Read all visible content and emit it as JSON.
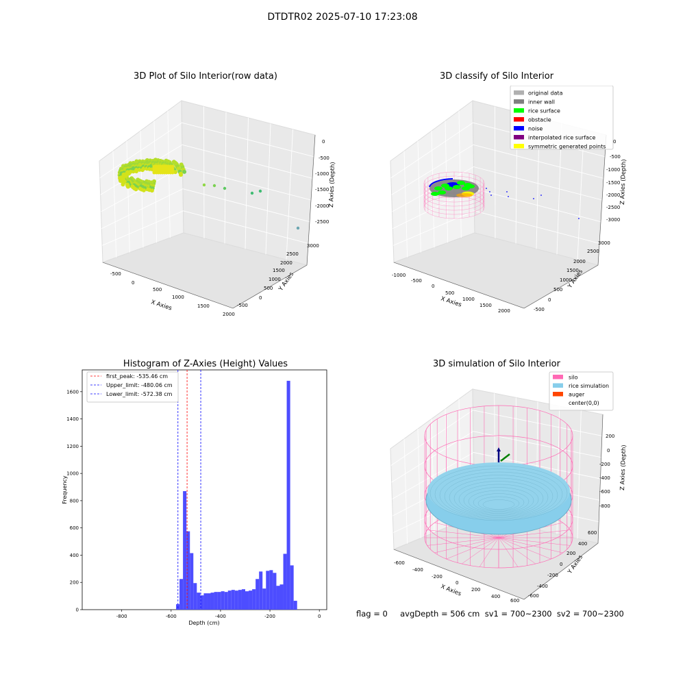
{
  "main_title": "DTDTR02 2025-07-10 17:23:08",
  "footer_text": "flag = 0     avgDepth = 506 cm  sv1 = 700~2300  sv2 = 700~2300",
  "chart_data": [
    {
      "type": "scatter",
      "projection": "3d",
      "title": "3D Plot of Silo Interior(row data)",
      "xlabel": "X Axies",
      "ylabel": "Y Axies",
      "zlabel": "Z Axies (Depth)",
      "xticks": [
        "-500",
        "0",
        "500",
        "1000",
        "1500",
        "2000"
      ],
      "yticks": [
        "-500",
        "0",
        "500",
        "1000",
        "1500",
        "2000",
        "2500",
        "3000"
      ],
      "zticks": [
        "0",
        "-500",
        "-1000",
        "-1500",
        "-2000",
        "-2500"
      ],
      "grid": true,
      "color_scheme": "viridis-like gradient by depth (yellow-green to teal)"
    },
    {
      "type": "scatter",
      "projection": "3d",
      "title": "3D classify of Silo Interior",
      "xlabel": "X Axies",
      "ylabel": "Y Axies",
      "zlabel": "Z Axies (Depth)",
      "xticks": [
        "-1000",
        "-500",
        "0",
        "500",
        "1000",
        "1500",
        "2000"
      ],
      "yticks": [
        "-500",
        "0",
        "500",
        "1000",
        "1500",
        "2000",
        "2500",
        "3000"
      ],
      "zticks": [
        "0",
        "-500",
        "-1000",
        "-1500",
        "-2000",
        "-2500",
        "-3000"
      ],
      "grid": true,
      "legend_position": "top-right",
      "legend": [
        {
          "label": "original data",
          "color": "#b0b0b0"
        },
        {
          "label": "inner wall",
          "color": "#808080"
        },
        {
          "label": "rice surface",
          "color": "#00ff00"
        },
        {
          "label": "obstacle",
          "color": "#ff0000"
        },
        {
          "label": "noise",
          "color": "#0000ff"
        },
        {
          "label": "interpolated rice surface",
          "color": "#800080"
        },
        {
          "label": "symmetric generated points",
          "color": "#ffff00"
        }
      ]
    },
    {
      "type": "bar",
      "title": "Histogram of Z-Axies (Height) Values",
      "xlabel": "Depth (cm)",
      "ylabel": "Frequency",
      "xlim": [
        -960,
        30
      ],
      "ylim": [
        0,
        1760
      ],
      "xticks": [
        "-800",
        "-600",
        "-400",
        "-200",
        "0"
      ],
      "yticks": [
        "0",
        "200",
        "400",
        "600",
        "800",
        "1000",
        "1200",
        "1400",
        "1600"
      ],
      "bar_color": "#4d4dff",
      "bins": [
        {
          "x0": -580,
          "x1": -566,
          "count": 40
        },
        {
          "x0": -566,
          "x1": -552,
          "count": 225
        },
        {
          "x0": -552,
          "x1": -538,
          "count": 870
        },
        {
          "x0": -538,
          "x1": -524,
          "count": 575
        },
        {
          "x0": -524,
          "x1": -510,
          "count": 415
        },
        {
          "x0": -510,
          "x1": -496,
          "count": 195
        },
        {
          "x0": -496,
          "x1": -482,
          "count": 125
        },
        {
          "x0": -482,
          "x1": -468,
          "count": 105
        },
        {
          "x0": -468,
          "x1": -454,
          "count": 120
        },
        {
          "x0": -454,
          "x1": -440,
          "count": 120
        },
        {
          "x0": -440,
          "x1": -426,
          "count": 125
        },
        {
          "x0": -426,
          "x1": -412,
          "count": 130
        },
        {
          "x0": -412,
          "x1": -398,
          "count": 130
        },
        {
          "x0": -398,
          "x1": -384,
          "count": 135
        },
        {
          "x0": -384,
          "x1": -370,
          "count": 130
        },
        {
          "x0": -370,
          "x1": -356,
          "count": 140
        },
        {
          "x0": -356,
          "x1": -342,
          "count": 145
        },
        {
          "x0": -342,
          "x1": -328,
          "count": 140
        },
        {
          "x0": -328,
          "x1": -314,
          "count": 145
        },
        {
          "x0": -314,
          "x1": -300,
          "count": 150
        },
        {
          "x0": -300,
          "x1": -286,
          "count": 135
        },
        {
          "x0": -286,
          "x1": -272,
          "count": 140
        },
        {
          "x0": -272,
          "x1": -258,
          "count": 150
        },
        {
          "x0": -258,
          "x1": -244,
          "count": 225
        },
        {
          "x0": -244,
          "x1": -230,
          "count": 280
        },
        {
          "x0": -230,
          "x1": -216,
          "count": 155
        },
        {
          "x0": -216,
          "x1": -202,
          "count": 285
        },
        {
          "x0": -202,
          "x1": -188,
          "count": 290
        },
        {
          "x0": -188,
          "x1": -174,
          "count": 270
        },
        {
          "x0": -174,
          "x1": -160,
          "count": 175
        },
        {
          "x0": -160,
          "x1": -146,
          "count": 185
        },
        {
          "x0": -146,
          "x1": -132,
          "count": 410
        },
        {
          "x0": -132,
          "x1": -118,
          "count": 1680
        },
        {
          "x0": -118,
          "x1": -104,
          "count": 325
        },
        {
          "x0": -104,
          "x1": -90,
          "count": 65
        }
      ],
      "vlines": [
        {
          "label": "first_peak: -535.46 cm",
          "x": -535.46,
          "color": "#ff0000",
          "style": "dashed"
        },
        {
          "label": "Upper_limit: -480.06 cm",
          "x": -480.06,
          "color": "#0000ff",
          "style": "dashed"
        },
        {
          "label": "Lower_limit: -572.38 cm",
          "x": -572.38,
          "color": "#0000ff",
          "style": "dashed"
        }
      ],
      "legend_position": "top-left"
    },
    {
      "type": "scatter",
      "projection": "3d",
      "title": "3D simulation of Silo Interior",
      "xlabel": "X Axies",
      "ylabel": "Y Axies",
      "zlabel": "Z Axies (Depth)",
      "xticks": [
        "-600",
        "-400",
        "-200",
        "0",
        "200",
        "400",
        "600"
      ],
      "yticks": [
        "-600",
        "-400",
        "-200",
        "0",
        "200",
        "400",
        "600"
      ],
      "zticks": [
        "200",
        "0",
        "-200",
        "-400",
        "-600",
        "-800"
      ],
      "grid": true,
      "legend_position": "top-right",
      "legend": [
        {
          "label": "silo",
          "color": "#ff69b4"
        },
        {
          "label": "rice simulation",
          "color": "#87ceeb"
        },
        {
          "label": "auger",
          "color": "#ff4500"
        },
        {
          "label": "center(0,0)",
          "color": "#ffffff"
        }
      ]
    }
  ]
}
